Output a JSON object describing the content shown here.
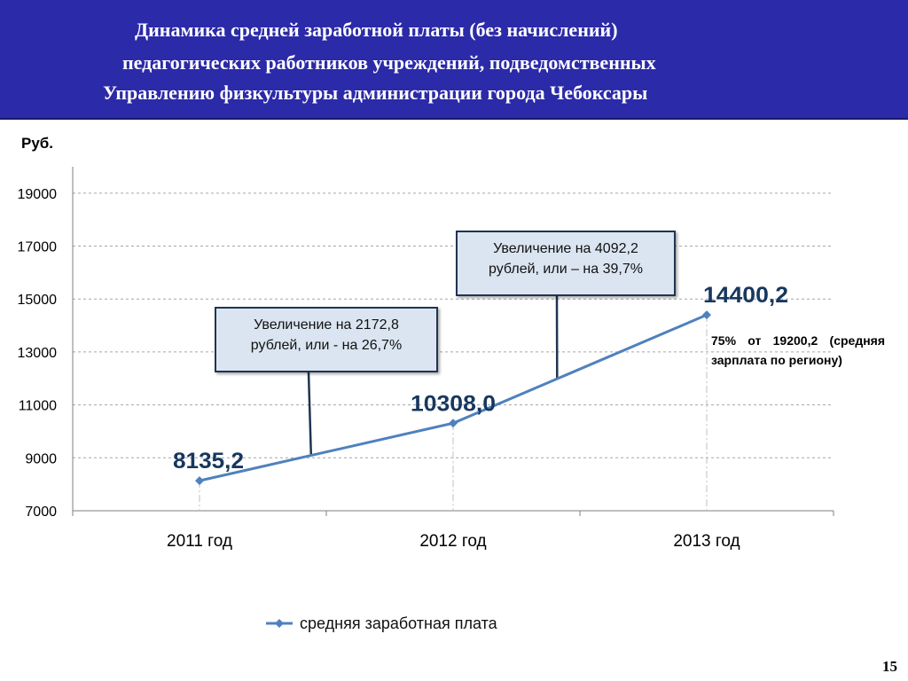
{
  "header": {
    "line1": "Динамика средней заработной платы (без начислений)",
    "line2": "педагогических работников учреждений, подведомственных",
    "line3": "Управлению физкультуры администрации города Чебоксары"
  },
  "unit_label": "Руб.",
  "colors": {
    "header_bg": "#2b2aa8",
    "series": "#4f81bd",
    "data_label": "#17375e"
  },
  "chart_data": {
    "type": "line",
    "categories": [
      "2011 год",
      "2012 год",
      "2013 год"
    ],
    "series": [
      {
        "name": "средняя заработная плата",
        "values": [
          8135.2,
          10308.0,
          14400.2
        ]
      }
    ],
    "data_labels": [
      "8135,2",
      "10308,0",
      "14400,2"
    ],
    "ylabel": "Руб.",
    "ylim": [
      7000,
      20000
    ],
    "yticks": [
      7000,
      9000,
      11000,
      13000,
      15000,
      17000,
      19000
    ],
    "grid": true,
    "legend": "bottom"
  },
  "callouts": [
    {
      "text_line1": "Увеличение на 2172,8",
      "text_line2": "рублей, или - на 26,7%"
    },
    {
      "text_line1": "Увеличение на 4092,2",
      "text_line2": "рублей, или – на 39,7%"
    }
  ],
  "note": "75% от 19200,2 (средняя зарплата по региону)",
  "page_number": "15"
}
